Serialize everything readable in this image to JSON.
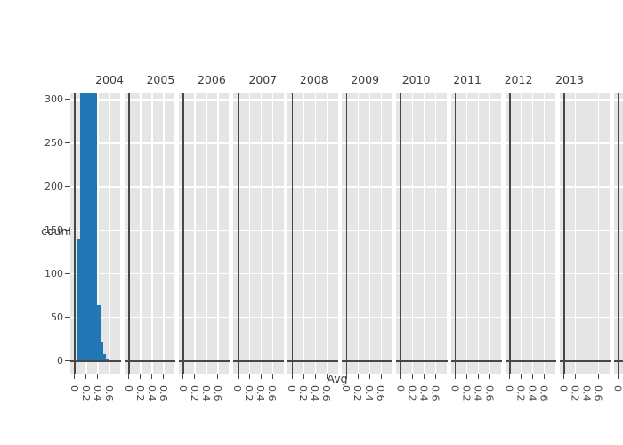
{
  "figure": {
    "y_axis_title": "count",
    "x_axis_title": "Avg",
    "facet_titles": [
      "2004",
      "2005",
      "2006",
      "2007",
      "2008",
      "2009",
      "2010",
      "2011",
      "2012",
      "2013"
    ],
    "y_tick_labels": [
      "0",
      "50",
      "100",
      "150",
      "200",
      "250",
      "300"
    ],
    "x_tick_labels": [
      "0",
      "0.2",
      "0.4",
      "0.6"
    ],
    "has_partial_eleventh_panel": true
  },
  "chart_data": {
    "type": "histogram",
    "title": "",
    "xlabel": "Avg",
    "ylabel": "count",
    "facets": [
      "2004",
      "2005",
      "2006",
      "2007",
      "2008",
      "2009",
      "2010",
      "2011",
      "2012",
      "2013"
    ],
    "x_ticks": [
      0,
      0.2,
      0.4,
      0.6
    ],
    "xlim": [
      -0.07,
      0.87
    ],
    "ylim": [
      -15,
      308
    ],
    "grid": true,
    "legend": false,
    "series": [
      {
        "name": "2004",
        "bin_start": 0.05,
        "bin_width": 0.05,
        "counts": [
          140,
          307,
          307,
          307,
          307,
          307,
          307,
          63,
          21,
          7,
          2,
          1
        ]
      },
      {
        "name": "2005",
        "bin_start": 0,
        "bin_width": 0.05,
        "counts": []
      },
      {
        "name": "2006",
        "bin_start": 0,
        "bin_width": 0.05,
        "counts": []
      },
      {
        "name": "2007",
        "bin_start": 0,
        "bin_width": 0.05,
        "counts": []
      },
      {
        "name": "2008",
        "bin_start": 0,
        "bin_width": 0.05,
        "counts": []
      },
      {
        "name": "2009",
        "bin_start": 0,
        "bin_width": 0.05,
        "counts": []
      },
      {
        "name": "2010",
        "bin_start": 0,
        "bin_width": 0.05,
        "counts": []
      },
      {
        "name": "2011",
        "bin_start": 0,
        "bin_width": 0.05,
        "counts": []
      },
      {
        "name": "2012",
        "bin_start": 0,
        "bin_width": 0.05,
        "counts": []
      },
      {
        "name": "2013",
        "bin_start": 0,
        "bin_width": 0.05,
        "counts": []
      }
    ]
  },
  "colors": {
    "bar": "#2077b4",
    "panel_bg": "#e5e5e5",
    "gridline": "#ffffff",
    "zeroline": "#474747",
    "tick_text": "#444444",
    "title_text": "#3b3b3b"
  }
}
